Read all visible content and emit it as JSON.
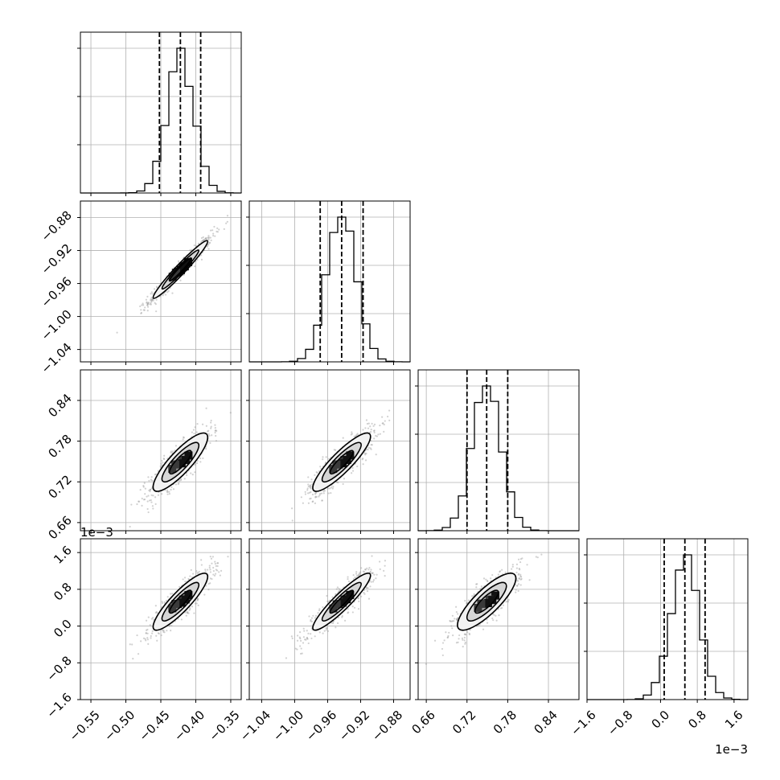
{
  "chart_data": {
    "type": "corner",
    "grid": true,
    "colors": {
      "ink": "#000000",
      "grid": "#b0b0b0",
      "points": "#9a9a9a"
    },
    "quantile_line_style": "dashed",
    "variables": [
      {
        "ticks": [
          -0.55,
          -0.5,
          -0.45,
          -0.4,
          -0.35
        ],
        "tick_labels": [
          "−0.55",
          "−0.50",
          "−0.45",
          "−0.40",
          "−0.35"
        ],
        "range": [
          -0.565,
          -0.335
        ],
        "offset_label": "",
        "quantiles": [
          -0.452,
          -0.422,
          -0.393
        ],
        "mean": -0.422,
        "sd": 0.0195
      },
      {
        "ticks": [
          -1.04,
          -1.0,
          -0.96,
          -0.92,
          -0.88
        ],
        "tick_labels": [
          "−1.04",
          "−1.00",
          "−0.96",
          "−0.92",
          "−0.88"
        ],
        "range": [
          -1.055,
          -0.86
        ],
        "offset_label": "",
        "quantiles": [
          -0.969,
          -0.943,
          -0.917
        ],
        "mean": -0.943,
        "sd": 0.0175
      },
      {
        "ticks": [
          0.66,
          0.72,
          0.78,
          0.84
        ],
        "tick_labels": [
          "0.66",
          "0.72",
          "0.78",
          "0.84"
        ],
        "range": [
          0.648,
          0.885
        ],
        "offset_label": "",
        "quantiles": [
          0.72,
          0.749,
          0.78
        ],
        "mean": 0.749,
        "sd": 0.0215
      },
      {
        "ticks": [
          -1.6,
          -0.8,
          0.0,
          0.8,
          1.6
        ],
        "tick_labels": [
          "−1.6",
          "−0.8",
          "0.0",
          "0.8",
          "1.6"
        ],
        "range": [
          -1.6,
          1.9
        ],
        "offset_label": "1e−3",
        "quantiles": [
          0.08,
          0.53,
          0.97
        ],
        "mean": 0.53,
        "sd": 0.31
      }
    ],
    "correlations": {
      "1_0": 0.97,
      "2_0": 0.85,
      "2_1": 0.88,
      "3_0": 0.88,
      "3_1": 0.92,
      "3_2": 0.82
    }
  }
}
